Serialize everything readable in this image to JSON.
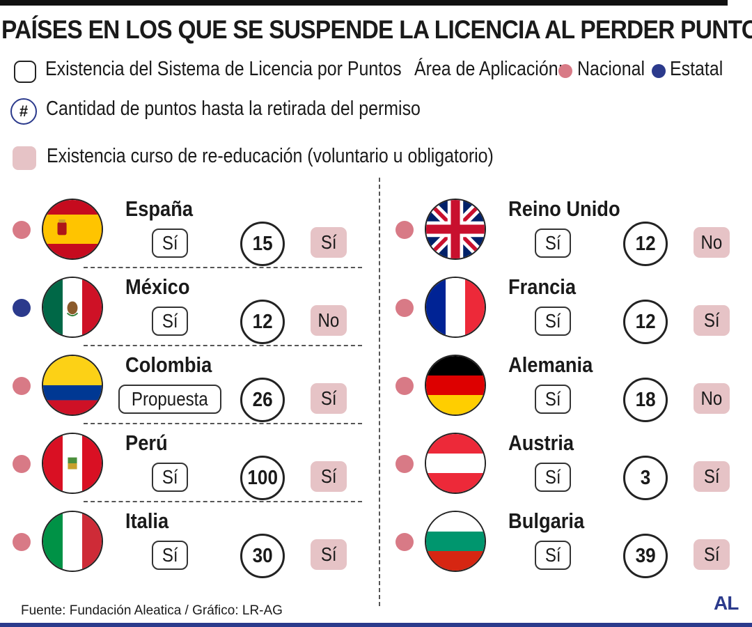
{
  "title": "PAÍSES EN LOS QUE SE SUSPENDE LA LICENCIA AL PERDER PUNTOS",
  "legend": {
    "sistema": "Existencia del Sistema de Licencia por Puntos",
    "area_label": "Área de Aplicación:",
    "nacional": "Nacional",
    "estatal": "Estatal",
    "hash_symbol": "#",
    "puntos": "Cantidad de puntos hasta la retirada del permiso",
    "curso": "Existencia curso de re-educación (voluntario u obligatorio)"
  },
  "colors": {
    "nacional": "#d87a86",
    "estatal": "#2b3a8c",
    "curso_bg": "#e6c3c6"
  },
  "left": [
    {
      "country": "España",
      "area": "Nacional",
      "sistema": "Sí",
      "puntos": "15",
      "curso": "Sí"
    },
    {
      "country": "México",
      "area": "Estatal",
      "sistema": "Sí",
      "puntos": "12",
      "curso": "No"
    },
    {
      "country": "Colombia",
      "area": "Nacional",
      "sistema": "Propuesta",
      "puntos": "26",
      "curso": "Sí"
    },
    {
      "country": "Perú",
      "area": "Nacional",
      "sistema": "Sí",
      "puntos": "100",
      "curso": "Sí"
    },
    {
      "country": "Italia",
      "area": "Nacional",
      "sistema": "Sí",
      "puntos": "30",
      "curso": "Sí"
    }
  ],
  "right": [
    {
      "country": "Reino Unido",
      "area": "Nacional",
      "sistema": "Sí",
      "puntos": "12",
      "curso": "No"
    },
    {
      "country": "Francia",
      "area": "Nacional",
      "sistema": "Sí",
      "puntos": "12",
      "curso": "Sí"
    },
    {
      "country": "Alemania",
      "area": "Nacional",
      "sistema": "Sí",
      "puntos": "18",
      "curso": "No"
    },
    {
      "country": "Austria",
      "area": "Nacional",
      "sistema": "Sí",
      "puntos": "3",
      "curso": "Sí"
    },
    {
      "country": "Bulgaria",
      "area": "Nacional",
      "sistema": "Sí",
      "puntos": "39",
      "curso": "Sí"
    }
  ],
  "footer": "Fuente: Fundación Aleatica / Gráfico: LR-AG",
  "logo": "AL"
}
